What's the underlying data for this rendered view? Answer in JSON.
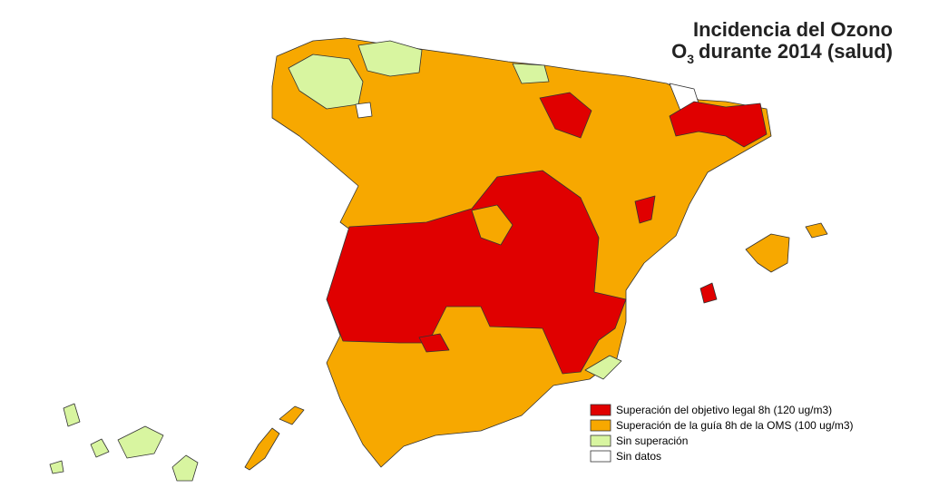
{
  "title": {
    "line1": "Incidencia del Ozono",
    "line2": {
      "prefix": "O",
      "subscript": "3",
      "rest": "durante 2014 (salud)"
    }
  },
  "legend": [
    {
      "label": "Superación del objetivo legal 8h (120 ug/m3)",
      "color": "#e00000"
    },
    {
      "label": "Superación de la guía 8h de la OMS (100 ug/m3)",
      "color": "#f7a800"
    },
    {
      "label": "Sin superación",
      "color": "#d8f5a0"
    },
    {
      "label": "Sin datos",
      "color": "#ffffff"
    }
  ]
}
